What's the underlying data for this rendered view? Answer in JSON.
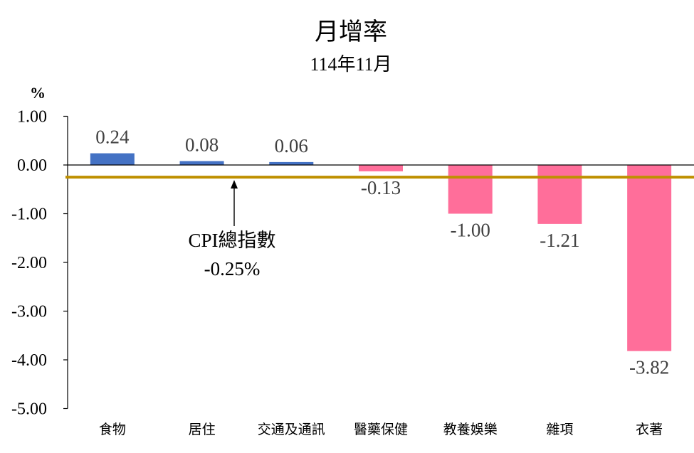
{
  "chart_data": {
    "type": "bar",
    "title": "月增率",
    "subtitle": "114年11月",
    "ylabel": "%",
    "categories": [
      "食物",
      "居住",
      "交通及通訊",
      "醫藥保健",
      "教養娛樂",
      "雜項",
      "衣著"
    ],
    "values": [
      0.24,
      0.08,
      0.06,
      -0.13,
      -1.0,
      -1.21,
      -3.82
    ],
    "value_labels": [
      "0.24",
      "0.08",
      "0.06",
      "-0.13",
      "-1.00",
      "-1.21",
      "-3.82"
    ],
    "ylim": [
      -5,
      1
    ],
    "yticks": [
      1,
      0,
      -1,
      -2,
      -3,
      -4,
      -5
    ],
    "ytick_labels": [
      "1.00",
      "0.00",
      "-1.00",
      "-2.00",
      "-3.00",
      "-4.00",
      "-5.00"
    ],
    "grid": false,
    "colors": {
      "positive": "#4472C4",
      "negative": "#FF6E9A",
      "reference_line": "#BF9000"
    },
    "reference": {
      "value": -0.25,
      "label_line1": "CPI總指數",
      "label_line2": "-0.25%"
    }
  }
}
